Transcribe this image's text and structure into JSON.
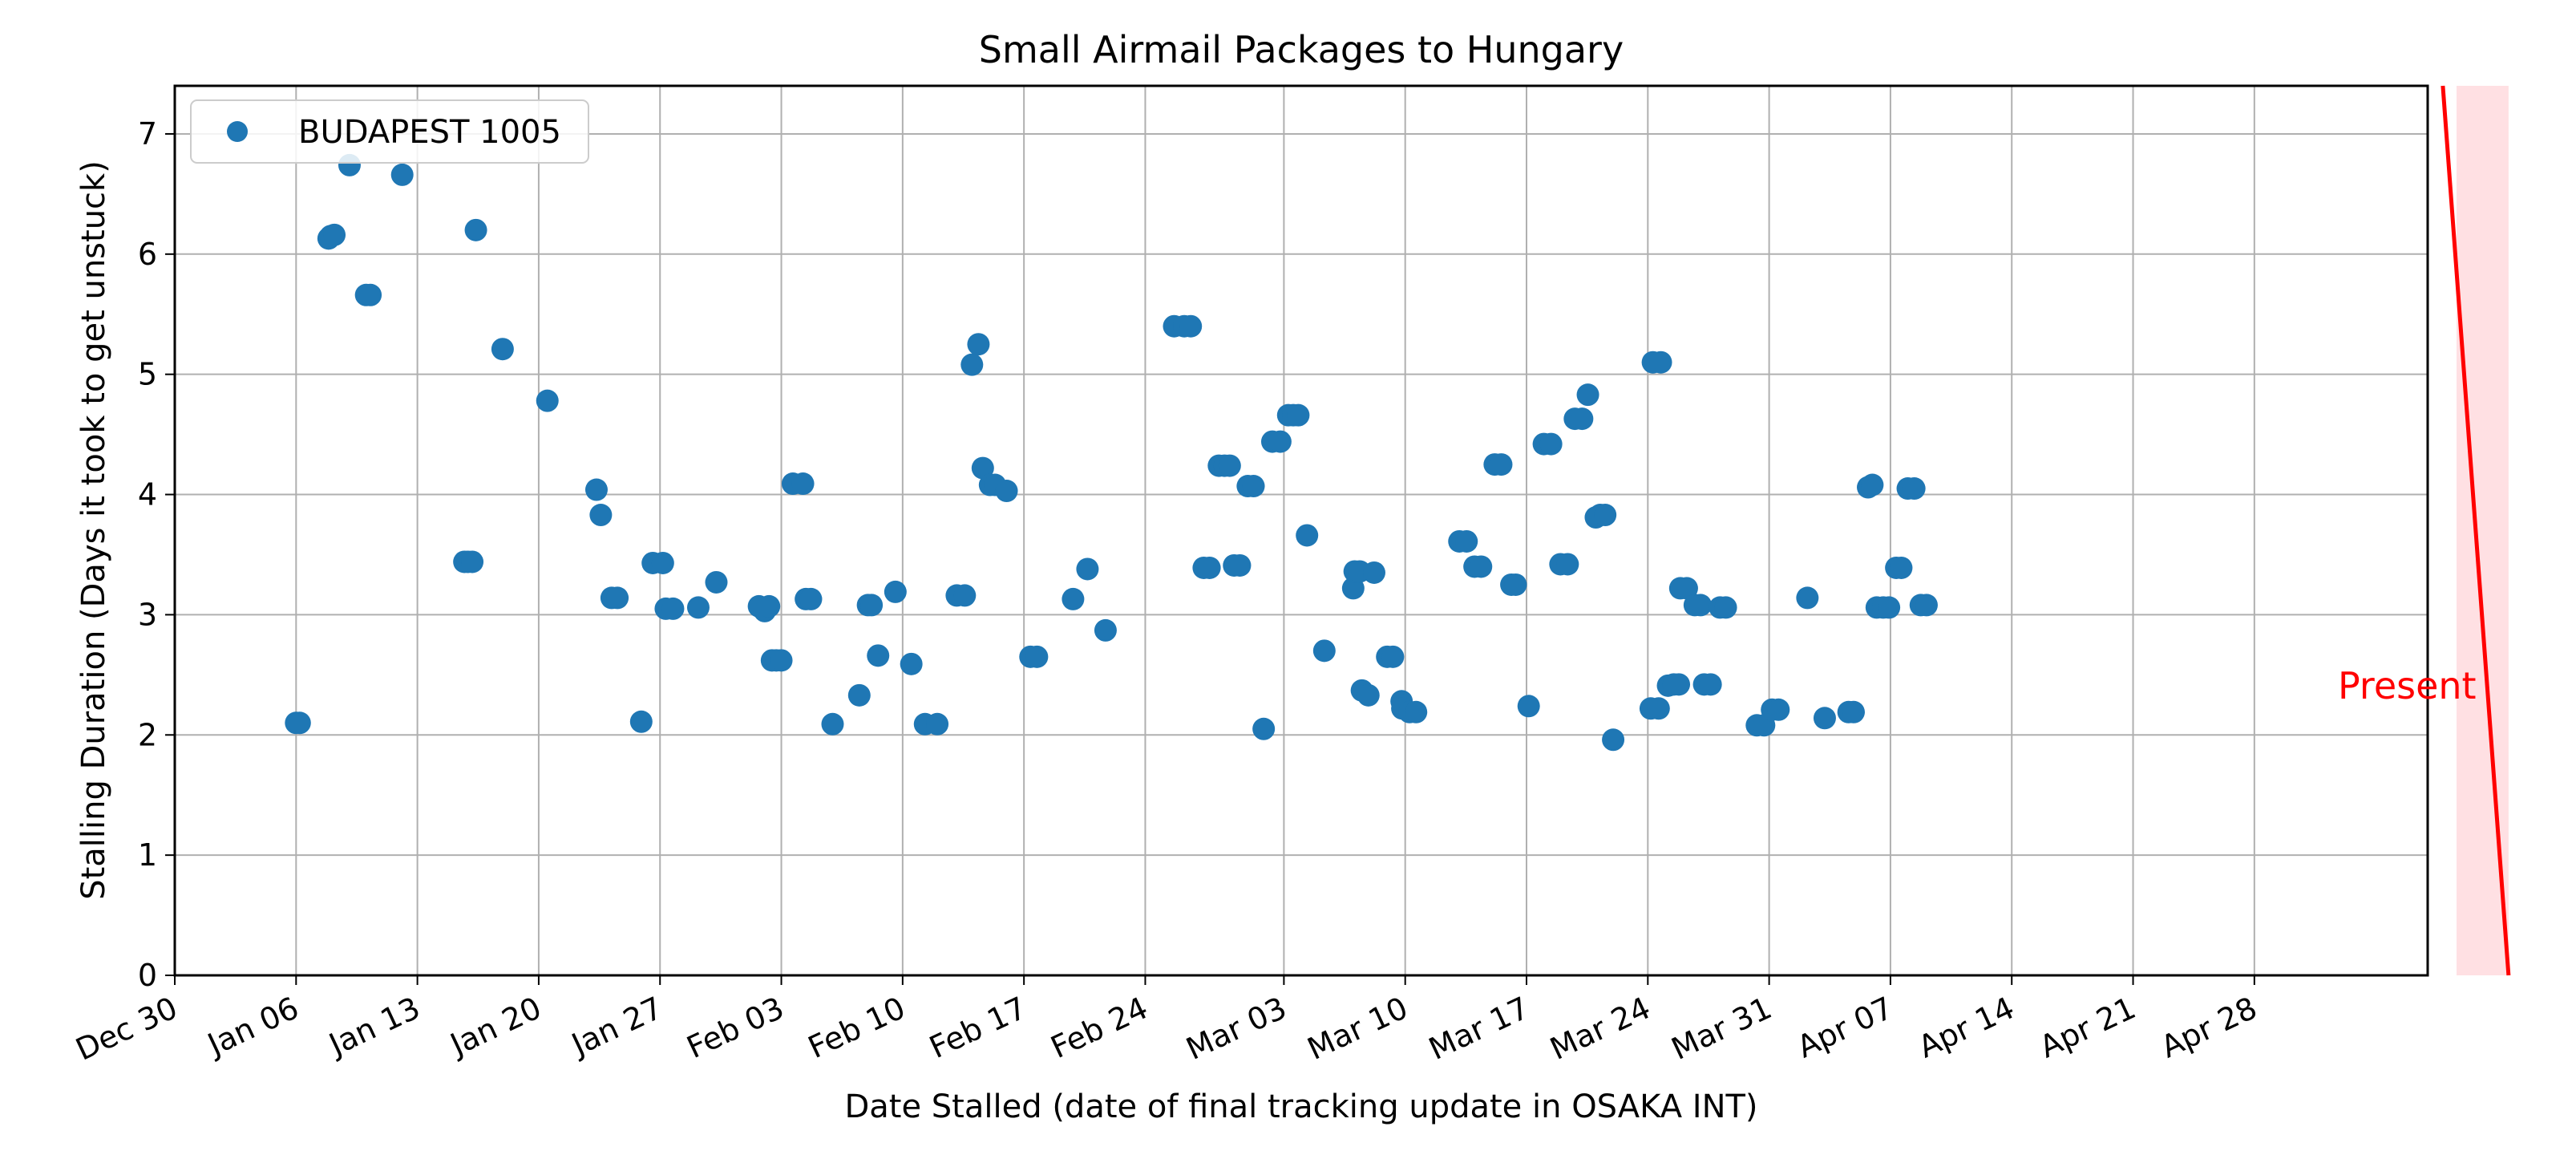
{
  "chart_data": {
    "type": "scatter",
    "title": "Small Airmail Packages to Hungary",
    "xlabel": "Date Stalled (date of final tracking update in OSAKA INT)",
    "ylabel": "Stalling Duration (Days it took to get unstuck)",
    "x_type": "date",
    "xlim": [
      "2023-12-30",
      "2024-05-08"
    ],
    "ylim": [
      0,
      7.4
    ],
    "grid": true,
    "legend_position": "top-left",
    "x_ticks": [
      {
        "date": "2023-12-30",
        "label": "Dec 30"
      },
      {
        "date": "2024-01-06",
        "label": "Jan 06"
      },
      {
        "date": "2024-01-13",
        "label": "Jan 13"
      },
      {
        "date": "2024-01-20",
        "label": "Jan 20"
      },
      {
        "date": "2024-01-27",
        "label": "Jan 27"
      },
      {
        "date": "2024-02-03",
        "label": "Feb 03"
      },
      {
        "date": "2024-02-10",
        "label": "Feb 10"
      },
      {
        "date": "2024-02-17",
        "label": "Feb 17"
      },
      {
        "date": "2024-02-24",
        "label": "Feb 24"
      },
      {
        "date": "2024-03-03",
        "label": "Mar 03"
      },
      {
        "date": "2024-03-10",
        "label": "Mar 10"
      },
      {
        "date": "2024-03-17",
        "label": "Mar 17"
      },
      {
        "date": "2024-03-24",
        "label": "Mar 24"
      },
      {
        "date": "2024-03-31",
        "label": "Mar 31"
      },
      {
        "date": "2024-04-07",
        "label": "Apr 07"
      },
      {
        "date": "2024-04-14",
        "label": "Apr 14"
      },
      {
        "date": "2024-04-21",
        "label": "Apr 21"
      },
      {
        "date": "2024-04-28",
        "label": "Apr 28"
      }
    ],
    "y_ticks": [
      "0",
      "1",
      "2",
      "3",
      "4",
      "5",
      "6",
      "7"
    ],
    "series": [
      {
        "name": "BUDAPEST 1005",
        "color": "#1f77b4",
        "points": [
          {
            "x": "2024-01-06 00:00",
            "y": 2.1
          },
          {
            "x": "2024-01-06 05:00",
            "y": 2.1
          },
          {
            "x": "2024-01-07 21:00",
            "y": 6.13
          },
          {
            "x": "2024-01-08 00:00",
            "y": 6.15
          },
          {
            "x": "2024-01-08 05:00",
            "y": 6.16
          },
          {
            "x": "2024-01-09 02:00",
            "y": 6.74
          },
          {
            "x": "2024-01-10 01:00",
            "y": 5.66
          },
          {
            "x": "2024-01-10 07:00",
            "y": 5.66
          },
          {
            "x": "2024-01-12 03:00",
            "y": 6.66
          },
          {
            "x": "2024-01-15 17:00",
            "y": 3.44
          },
          {
            "x": "2024-01-15 22:00",
            "y": 3.44
          },
          {
            "x": "2024-01-16 04:00",
            "y": 3.44
          },
          {
            "x": "2024-01-16 09:00",
            "y": 6.2
          },
          {
            "x": "2024-01-17 22:00",
            "y": 5.21
          },
          {
            "x": "2024-01-20 12:00",
            "y": 4.78
          },
          {
            "x": "2024-01-23 08:00",
            "y": 4.04
          },
          {
            "x": "2024-01-23 14:00",
            "y": 3.83
          },
          {
            "x": "2024-01-24 05:00",
            "y": 3.14
          },
          {
            "x": "2024-01-24 13:00",
            "y": 3.14
          },
          {
            "x": "2024-01-25 22:00",
            "y": 2.11
          },
          {
            "x": "2024-01-26 14:00",
            "y": 3.43
          },
          {
            "x": "2024-01-27 04:00",
            "y": 3.43
          },
          {
            "x": "2024-01-27 08:00",
            "y": 3.05
          },
          {
            "x": "2024-01-27 18:00",
            "y": 3.05
          },
          {
            "x": "2024-01-29 05:00",
            "y": 3.06
          },
          {
            "x": "2024-01-30 06:00",
            "y": 3.27
          },
          {
            "x": "2024-02-01 17:00",
            "y": 3.07
          },
          {
            "x": "2024-02-02 01:00",
            "y": 3.03
          },
          {
            "x": "2024-02-02 07:00",
            "y": 3.07
          },
          {
            "x": "2024-02-02 11:00",
            "y": 2.62
          },
          {
            "x": "2024-02-02 17:00",
            "y": 2.62
          },
          {
            "x": "2024-02-03 00:00",
            "y": 2.62
          },
          {
            "x": "2024-02-03 16:00",
            "y": 4.09
          },
          {
            "x": "2024-02-04 06:00",
            "y": 4.09
          },
          {
            "x": "2024-02-04 10:00",
            "y": 3.13
          },
          {
            "x": "2024-02-04 17:00",
            "y": 3.13
          },
          {
            "x": "2024-02-05 23:00",
            "y": 2.09
          },
          {
            "x": "2024-02-07 12:00",
            "y": 2.33
          },
          {
            "x": "2024-02-08 00:00",
            "y": 3.08
          },
          {
            "x": "2024-02-08 05:00",
            "y": 3.08
          },
          {
            "x": "2024-02-08 14:00",
            "y": 2.66
          },
          {
            "x": "2024-02-09 14:00",
            "y": 3.19
          },
          {
            "x": "2024-02-10 12:00",
            "y": 2.59
          },
          {
            "x": "2024-02-11 07:00",
            "y": 2.09
          },
          {
            "x": "2024-02-12 00:00",
            "y": 2.09
          },
          {
            "x": "2024-02-13 03:00",
            "y": 3.16
          },
          {
            "x": "2024-02-13 14:00",
            "y": 3.16
          },
          {
            "x": "2024-02-14 00:00",
            "y": 5.08
          },
          {
            "x": "2024-02-14 09:00",
            "y": 5.25
          },
          {
            "x": "2024-02-14 15:00",
            "y": 4.22
          },
          {
            "x": "2024-02-15 01:00",
            "y": 4.08
          },
          {
            "x": "2024-02-15 08:00",
            "y": 4.08
          },
          {
            "x": "2024-02-16 00:00",
            "y": 4.03
          },
          {
            "x": "2024-02-17 09:00",
            "y": 2.65
          },
          {
            "x": "2024-02-17 18:00",
            "y": 2.65
          },
          {
            "x": "2024-02-19 20:00",
            "y": 3.13
          },
          {
            "x": "2024-02-20 16:00",
            "y": 3.38
          },
          {
            "x": "2024-02-21 17:00",
            "y": 2.87
          },
          {
            "x": "2024-02-25 16:00",
            "y": 5.4
          },
          {
            "x": "2024-02-26 06:00",
            "y": 5.4
          },
          {
            "x": "2024-02-26 15:00",
            "y": 5.4
          },
          {
            "x": "2024-02-27 09:00",
            "y": 3.39
          },
          {
            "x": "2024-02-27 17:00",
            "y": 3.39
          },
          {
            "x": "2024-02-28 06:00",
            "y": 4.24
          },
          {
            "x": "2024-02-28 14:00",
            "y": 4.24
          },
          {
            "x": "2024-02-28 21:00",
            "y": 4.24
          },
          {
            "x": "2024-02-29 03:00",
            "y": 3.41
          },
          {
            "x": "2024-02-29 11:00",
            "y": 3.41
          },
          {
            "x": "2024-02-29 22:00",
            "y": 4.07
          },
          {
            "x": "2024-03-01 06:00",
            "y": 4.07
          },
          {
            "x": "2024-03-01 20:00",
            "y": 2.05
          },
          {
            "x": "2024-03-02 08:00",
            "y": 4.44
          },
          {
            "x": "2024-03-02 19:00",
            "y": 4.44
          },
          {
            "x": "2024-03-03 06:00",
            "y": 4.66
          },
          {
            "x": "2024-03-03 13:00",
            "y": 4.66
          },
          {
            "x": "2024-03-03 20:00",
            "y": 4.66
          },
          {
            "x": "2024-03-04 08:00",
            "y": 3.66
          },
          {
            "x": "2024-03-05 08:00",
            "y": 2.7
          },
          {
            "x": "2024-03-07 00:00",
            "y": 3.22
          },
          {
            "x": "2024-03-07 02:00",
            "y": 3.36
          },
          {
            "x": "2024-03-07 09:00",
            "y": 3.36
          },
          {
            "x": "2024-03-07 12:00",
            "y": 2.37
          },
          {
            "x": "2024-03-07 21:00",
            "y": 2.33
          },
          {
            "x": "2024-03-08 05:00",
            "y": 3.35
          },
          {
            "x": "2024-03-08 23:00",
            "y": 2.65
          },
          {
            "x": "2024-03-09 07:00",
            "y": 2.65
          },
          {
            "x": "2024-03-09 19:00",
            "y": 2.28
          },
          {
            "x": "2024-03-09 20:00",
            "y": 2.22
          },
          {
            "x": "2024-03-10 06:00",
            "y": 2.19
          },
          {
            "x": "2024-03-10 15:00",
            "y": 2.19
          },
          {
            "x": "2024-03-13 03:00",
            "y": 3.61
          },
          {
            "x": "2024-03-13 13:00",
            "y": 3.61
          },
          {
            "x": "2024-03-14 00:00",
            "y": 3.4
          },
          {
            "x": "2024-03-14 09:00",
            "y": 3.4
          },
          {
            "x": "2024-03-15 04:00",
            "y": 4.25
          },
          {
            "x": "2024-03-15 13:00",
            "y": 4.25
          },
          {
            "x": "2024-03-16 03:00",
            "y": 3.25
          },
          {
            "x": "2024-03-16 09:00",
            "y": 3.25
          },
          {
            "x": "2024-03-17 03:00",
            "y": 2.24
          },
          {
            "x": "2024-03-18 00:00",
            "y": 4.42
          },
          {
            "x": "2024-03-18 10:00",
            "y": 4.42
          },
          {
            "x": "2024-03-18 23:00",
            "y": 3.42
          },
          {
            "x": "2024-03-19 09:00",
            "y": 3.42
          },
          {
            "x": "2024-03-19 19:00",
            "y": 4.63
          },
          {
            "x": "2024-03-20 05:00",
            "y": 4.63
          },
          {
            "x": "2024-03-20 13:00",
            "y": 4.83
          },
          {
            "x": "2024-03-21 00:00",
            "y": 3.81
          },
          {
            "x": "2024-03-21 06:00",
            "y": 3.83
          },
          {
            "x": "2024-03-21 13:00",
            "y": 3.83
          },
          {
            "x": "2024-03-22 00:00",
            "y": 1.96
          },
          {
            "x": "2024-03-24 07:00",
            "y": 5.1
          },
          {
            "x": "2024-03-24 18:00",
            "y": 5.1
          },
          {
            "x": "2024-03-24 04:00",
            "y": 2.22
          },
          {
            "x": "2024-03-24 15:00",
            "y": 2.22
          },
          {
            "x": "2024-03-25 04:00",
            "y": 2.41
          },
          {
            "x": "2024-03-25 12:00",
            "y": 2.42
          },
          {
            "x": "2024-03-25 19:00",
            "y": 2.42
          },
          {
            "x": "2024-03-25 21:00",
            "y": 3.22
          },
          {
            "x": "2024-03-26 06:00",
            "y": 3.22
          },
          {
            "x": "2024-03-26 17:00",
            "y": 3.08
          },
          {
            "x": "2024-03-27 01:00",
            "y": 3.08
          },
          {
            "x": "2024-03-27 06:00",
            "y": 2.42
          },
          {
            "x": "2024-03-27 15:00",
            "y": 2.42
          },
          {
            "x": "2024-03-28 04:00",
            "y": 3.06
          },
          {
            "x": "2024-03-28 12:00",
            "y": 3.06
          },
          {
            "x": "2024-03-30 07:00",
            "y": 2.08
          },
          {
            "x": "2024-03-30 17:00",
            "y": 2.08
          },
          {
            "x": "2024-03-31 04:00",
            "y": 2.21
          },
          {
            "x": "2024-03-31 13:00",
            "y": 2.21
          },
          {
            "x": "2024-04-02 05:00",
            "y": 3.14
          },
          {
            "x": "2024-04-03 05:00",
            "y": 2.14
          },
          {
            "x": "2024-04-04 14:00",
            "y": 2.19
          },
          {
            "x": "2024-04-04 21:00",
            "y": 2.19
          },
          {
            "x": "2024-04-05 17:00",
            "y": 4.06
          },
          {
            "x": "2024-04-05 23:00",
            "y": 4.08
          },
          {
            "x": "2024-04-06 05:00",
            "y": 3.06
          },
          {
            "x": "2024-04-06 14:00",
            "y": 3.06
          },
          {
            "x": "2024-04-06 22:00",
            "y": 3.06
          },
          {
            "x": "2024-04-07 08:00",
            "y": 3.39
          },
          {
            "x": "2024-04-07 15:00",
            "y": 3.39
          },
          {
            "x": "2024-04-08 00:00",
            "y": 4.05
          },
          {
            "x": "2024-04-08 09:00",
            "y": 4.05
          },
          {
            "x": "2024-04-08 18:00",
            "y": 3.08
          },
          {
            "x": "2024-04-09 02:00",
            "y": 3.08
          }
        ]
      }
    ],
    "annotation": {
      "label": "Present",
      "color": "#ff0000",
      "line_from": {
        "x": "2024-05-08 21:00",
        "y": 7.4
      },
      "line_to": {
        "x": "2024-05-12 16:00",
        "y": 0
      },
      "band_from": "2024-05-09 16:00",
      "band_to": "2024-05-12 16:00",
      "band_color": "#ffdde0"
    }
  }
}
